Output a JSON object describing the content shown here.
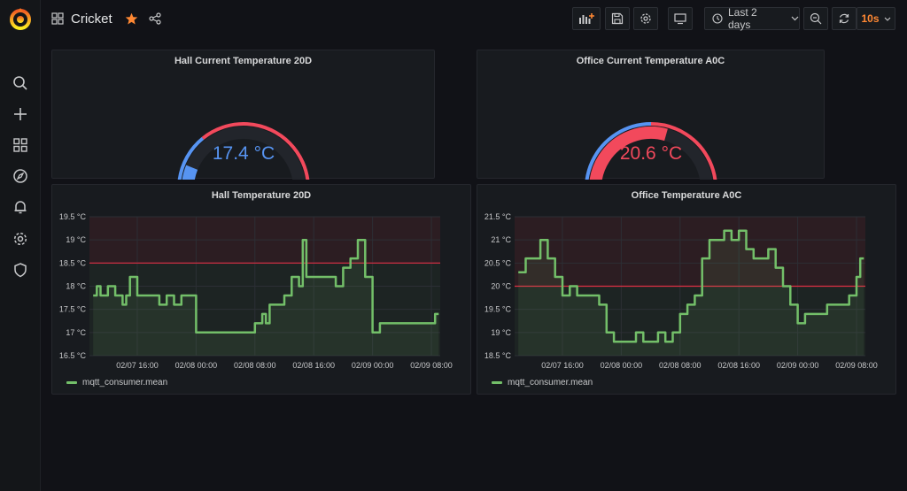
{
  "dashboard": {
    "title": "Cricket",
    "starred": true
  },
  "toolbar": {
    "time_range": "Last 2 days",
    "refresh_interval": "10s"
  },
  "colors": {
    "blue": "#5794f2",
    "red": "#f2495c",
    "green": "#73bf69",
    "threshold_line": "#e02f44"
  },
  "sidebar": {
    "items": [
      {
        "icon": "search-icon"
      },
      {
        "icon": "plus-icon"
      },
      {
        "icon": "dashboards-icon"
      },
      {
        "icon": "explore-icon"
      },
      {
        "icon": "bell-icon"
      },
      {
        "icon": "gear-icon"
      },
      {
        "icon": "shield-icon"
      }
    ]
  },
  "gauges": [
    {
      "title": "Hall Current Temperature 20D",
      "value": 17.4,
      "display": "17.4 °C",
      "min": 15,
      "max": 25,
      "threshold": 18.5,
      "color": "#5794f2"
    },
    {
      "title": "Office Current Temperature A0C",
      "value": 20.6,
      "display": "20.6 °C",
      "min": 15,
      "max": 25,
      "threshold": 20,
      "color": "#f2495c"
    }
  ],
  "chart_data": [
    {
      "type": "line",
      "title": "Hall Temperature 20D",
      "ylim": [
        16.5,
        19.5
      ],
      "yticks": [
        "16.5 °C",
        "17 °C",
        "17.5 °C",
        "18 °C",
        "18.5 °C",
        "19 °C",
        "19.5 °C"
      ],
      "xticks": [
        "02/07 16:00",
        "02/08 00:00",
        "02/08 08:00",
        "02/08 16:00",
        "02/09 00:00",
        "02/09 08:00"
      ],
      "threshold": 18.5,
      "legend": "mqtt_consumer.mean",
      "series": [
        {
          "name": "mqtt_consumer.mean",
          "x": [
            "02/07 10:00",
            "02/07 10:30",
            "02/07 11:00",
            "02/07 11:30",
            "02/07 12:00",
            "02/07 13:00",
            "02/07 14:00",
            "02/07 14:30",
            "02/07 15:00",
            "02/07 16:00",
            "02/07 17:00",
            "02/07 18:00",
            "02/07 19:00",
            "02/07 20:00",
            "02/07 21:00",
            "02/07 22:00",
            "02/07 23:00",
            "02/08 00:00",
            "02/08 02:00",
            "02/08 04:00",
            "02/08 06:00",
            "02/08 07:00",
            "02/08 08:00",
            "02/08 09:00",
            "02/08 09:30",
            "02/08 10:00",
            "02/08 11:00",
            "02/08 12:00",
            "02/08 13:00",
            "02/08 14:00",
            "02/08 14:30",
            "02/08 15:00",
            "02/08 16:00",
            "02/08 17:00",
            "02/08 18:00",
            "02/08 19:00",
            "02/08 20:00",
            "02/08 21:00",
            "02/08 22:00",
            "02/08 23:00",
            "02/09 00:00",
            "02/09 01:00",
            "02/09 02:00",
            "02/09 04:00",
            "02/09 06:00",
            "02/09 08:00",
            "02/09 08:30",
            "02/09 09:00"
          ],
          "y": [
            17.8,
            18.0,
            17.8,
            17.8,
            18.0,
            17.8,
            17.6,
            17.8,
            18.2,
            17.8,
            17.8,
            17.8,
            17.6,
            17.8,
            17.6,
            17.8,
            17.8,
            17.0,
            17.0,
            17.0,
            17.0,
            17.0,
            17.2,
            17.4,
            17.2,
            17.6,
            17.6,
            17.8,
            18.2,
            18.0,
            19.0,
            18.2,
            18.2,
            18.2,
            18.2,
            18.0,
            18.4,
            18.6,
            19.0,
            18.2,
            17.0,
            17.2,
            17.2,
            17.2,
            17.2,
            17.2,
            17.4,
            17.4
          ]
        }
      ]
    },
    {
      "type": "line",
      "title": "Office Temperature A0C",
      "ylim": [
        18.5,
        21.5
      ],
      "yticks": [
        "18.5 °C",
        "19 °C",
        "19.5 °C",
        "20 °C",
        "20.5 °C",
        "21 °C",
        "21.5 °C"
      ],
      "xticks": [
        "02/07 16:00",
        "02/08 00:00",
        "02/08 08:00",
        "02/08 16:00",
        "02/09 00:00",
        "02/09 08:00"
      ],
      "threshold": 20,
      "legend": "mqtt_consumer.mean",
      "series": [
        {
          "name": "mqtt_consumer.mean",
          "x": [
            "02/07 10:00",
            "02/07 11:00",
            "02/07 12:00",
            "02/07 13:00",
            "02/07 14:00",
            "02/07 15:00",
            "02/07 16:00",
            "02/07 17:00",
            "02/07 18:00",
            "02/07 19:00",
            "02/07 20:00",
            "02/07 21:00",
            "02/07 22:00",
            "02/07 23:00",
            "02/08 00:00",
            "02/08 01:00",
            "02/08 02:00",
            "02/08 03:00",
            "02/08 04:00",
            "02/08 05:00",
            "02/08 06:00",
            "02/08 07:00",
            "02/08 08:00",
            "02/08 09:00",
            "02/08 10:00",
            "02/08 11:00",
            "02/08 12:00",
            "02/08 13:00",
            "02/08 14:00",
            "02/08 15:00",
            "02/08 16:00",
            "02/08 17:00",
            "02/08 18:00",
            "02/08 19:00",
            "02/08 20:00",
            "02/08 21:00",
            "02/08 22:00",
            "02/08 23:00",
            "02/09 00:00",
            "02/09 01:00",
            "02/09 02:00",
            "02/09 04:00",
            "02/09 06:00",
            "02/09 07:00",
            "02/09 08:00",
            "02/09 08:30",
            "02/09 09:00"
          ],
          "y": [
            20.3,
            20.6,
            20.6,
            21.0,
            20.6,
            20.2,
            19.8,
            20.0,
            19.8,
            19.8,
            19.8,
            19.6,
            19.0,
            18.8,
            18.8,
            18.8,
            19.0,
            18.8,
            18.8,
            19.0,
            18.8,
            19.0,
            19.4,
            19.6,
            19.8,
            20.6,
            21.0,
            21.0,
            21.2,
            21.0,
            21.2,
            20.8,
            20.6,
            20.6,
            20.8,
            20.4,
            20.0,
            19.6,
            19.2,
            19.4,
            19.4,
            19.6,
            19.6,
            19.8,
            20.2,
            20.6,
            20.6
          ]
        }
      ]
    }
  ]
}
